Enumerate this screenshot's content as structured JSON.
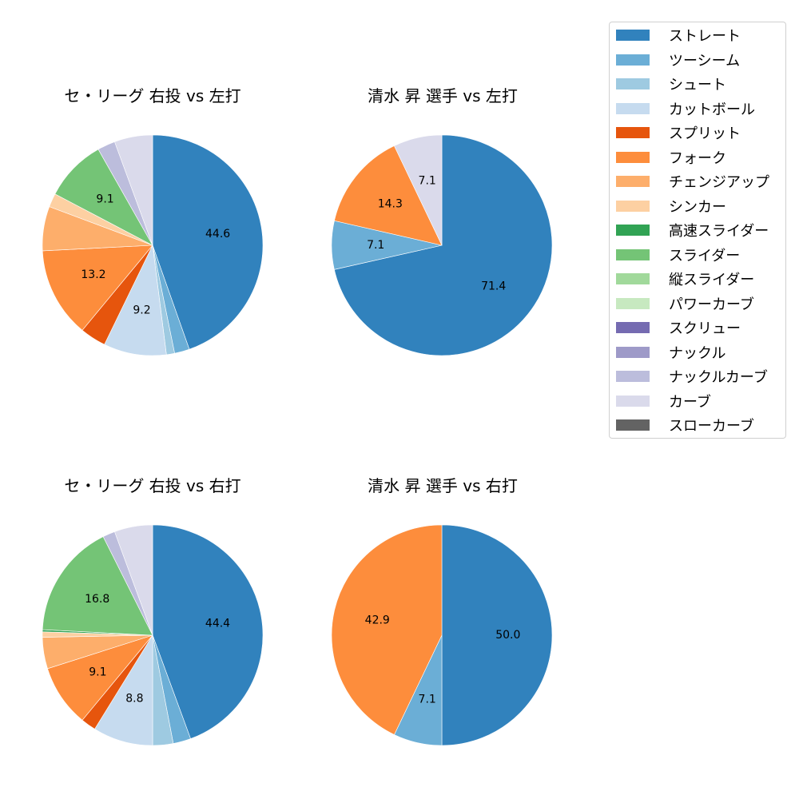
{
  "legend": {
    "items": [
      {
        "label": "ストレート",
        "color": "#3182bd"
      },
      {
        "label": "ツーシーム",
        "color": "#6baed6"
      },
      {
        "label": "シュート",
        "color": "#9ecae1"
      },
      {
        "label": "カットボール",
        "color": "#c6dbef"
      },
      {
        "label": "スプリット",
        "color": "#e6550d"
      },
      {
        "label": "フォーク",
        "color": "#fd8d3c"
      },
      {
        "label": "チェンジアップ",
        "color": "#fdae6b"
      },
      {
        "label": "シンカー",
        "color": "#fdd0a2"
      },
      {
        "label": "高速スライダー",
        "color": "#31a354"
      },
      {
        "label": "スライダー",
        "color": "#74c476"
      },
      {
        "label": "縦スライダー",
        "color": "#a1d99b"
      },
      {
        "label": "パワーカーブ",
        "color": "#c7e9c0"
      },
      {
        "label": "スクリュー",
        "color": "#756bb1"
      },
      {
        "label": "ナックル",
        "color": "#9e9ac8"
      },
      {
        "label": "ナックルカーブ",
        "color": "#bcbddc"
      },
      {
        "label": "カーブ",
        "color": "#dadaeb"
      },
      {
        "label": "スローカーブ",
        "color": "#636363"
      }
    ]
  },
  "chart_data": [
    {
      "type": "pie",
      "title": "セ・リーグ 右投 vs 左打",
      "start_angle": 90,
      "direction": "clockwise",
      "slices": [
        {
          "label": "ストレート",
          "value": 44.6,
          "shown_label": "44.6"
        },
        {
          "label": "ツーシーム",
          "value": 2.2,
          "shown_label": ""
        },
        {
          "label": "シュート",
          "value": 1.2,
          "shown_label": ""
        },
        {
          "label": "カットボール",
          "value": 9.2,
          "shown_label": "9.2"
        },
        {
          "label": "スプリット",
          "value": 3.8,
          "shown_label": ""
        },
        {
          "label": "フォーク",
          "value": 13.2,
          "shown_label": "13.2"
        },
        {
          "label": "チェンジアップ",
          "value": 6.5,
          "shown_label": ""
        },
        {
          "label": "シンカー",
          "value": 2.0,
          "shown_label": ""
        },
        {
          "label": "スライダー",
          "value": 9.1,
          "shown_label": "9.1"
        },
        {
          "label": "ナックルカーブ",
          "value": 2.6,
          "shown_label": ""
        },
        {
          "label": "カーブ",
          "value": 5.6,
          "shown_label": ""
        }
      ]
    },
    {
      "type": "pie",
      "title": "清水 昇 選手 vs 左打",
      "start_angle": 90,
      "direction": "clockwise",
      "slices": [
        {
          "label": "ストレート",
          "value": 71.4,
          "shown_label": "71.4"
        },
        {
          "label": "ツーシーム",
          "value": 7.1,
          "shown_label": "7.1"
        },
        {
          "label": "フォーク",
          "value": 14.3,
          "shown_label": "14.3"
        },
        {
          "label": "カーブ",
          "value": 7.1,
          "shown_label": "7.1"
        }
      ]
    },
    {
      "type": "pie",
      "title": "セ・リーグ 右投 vs 右打",
      "start_angle": 90,
      "direction": "clockwise",
      "slices": [
        {
          "label": "ストレート",
          "value": 44.4,
          "shown_label": "44.4"
        },
        {
          "label": "ツーシーム",
          "value": 2.6,
          "shown_label": ""
        },
        {
          "label": "シュート",
          "value": 3.0,
          "shown_label": ""
        },
        {
          "label": "カットボール",
          "value": 8.8,
          "shown_label": "8.8"
        },
        {
          "label": "スプリット",
          "value": 2.2,
          "shown_label": ""
        },
        {
          "label": "フォーク",
          "value": 9.1,
          "shown_label": "9.1"
        },
        {
          "label": "チェンジアップ",
          "value": 4.6,
          "shown_label": ""
        },
        {
          "label": "シンカー",
          "value": 0.8,
          "shown_label": ""
        },
        {
          "label": "高速スライダー",
          "value": 0.3,
          "shown_label": ""
        },
        {
          "label": "スライダー",
          "value": 16.8,
          "shown_label": "16.8"
        },
        {
          "label": "ナックルカーブ",
          "value": 1.8,
          "shown_label": ""
        },
        {
          "label": "カーブ",
          "value": 5.6,
          "shown_label": ""
        }
      ]
    },
    {
      "type": "pie",
      "title": "清水 昇 選手 vs 右打",
      "start_angle": 90,
      "direction": "clockwise",
      "slices": [
        {
          "label": "ストレート",
          "value": 50.0,
          "shown_label": "50.0"
        },
        {
          "label": "ツーシーム",
          "value": 7.1,
          "shown_label": "7.1"
        },
        {
          "label": "フォーク",
          "value": 42.9,
          "shown_label": "42.9"
        }
      ]
    }
  ]
}
